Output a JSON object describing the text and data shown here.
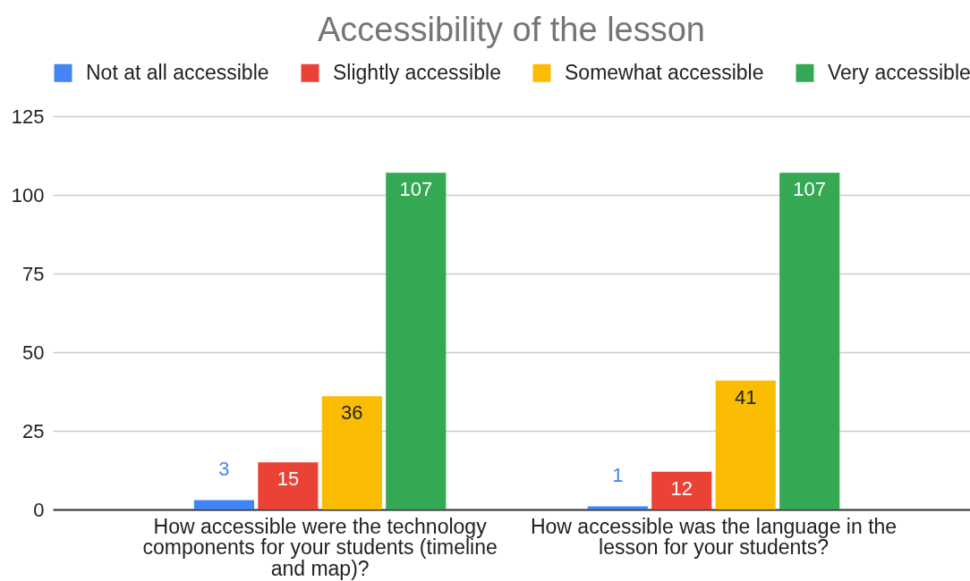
{
  "chart_data": {
    "type": "bar",
    "title": "Accessibility of the lesson",
    "categories": [
      "How accessible were the technology components for your students (timeline and map)?",
      "How accessible was the language in the lesson for your students?"
    ],
    "series": [
      {
        "name": "Not at all accessible",
        "color": "#4285f4",
        "values": [
          3,
          1
        ]
      },
      {
        "name": "Slightly accessible",
        "color": "#ea4335",
        "values": [
          15,
          12
        ]
      },
      {
        "name": "Somewhat accessible",
        "color": "#fbbc04",
        "values": [
          36,
          41
        ]
      },
      {
        "name": "Very accessible",
        "color": "#34a853",
        "values": [
          107,
          107
        ]
      }
    ],
    "ylim": [
      0,
      125
    ],
    "yticks": [
      0,
      25,
      50,
      75,
      100,
      125
    ],
    "grid": "y",
    "legend": "top",
    "data_labels": true
  }
}
